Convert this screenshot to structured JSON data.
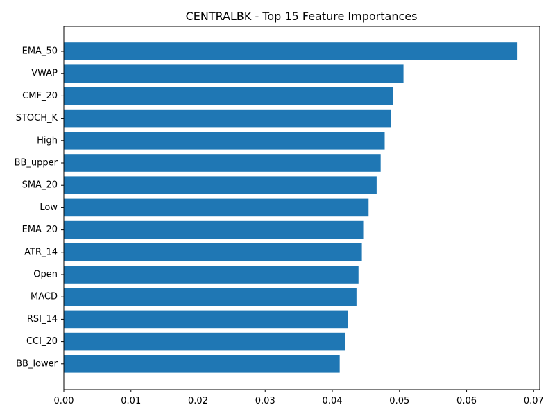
{
  "chart_data": {
    "type": "bar",
    "orientation": "horizontal",
    "title": "CENTRALBK - Top 15 Feature Importances",
    "xlabel": "",
    "ylabel": "",
    "categories": [
      "EMA_50",
      "VWAP",
      "CMF_20",
      "STOCH_K",
      "High",
      "BB_upper",
      "SMA_20",
      "Low",
      "EMA_20",
      "ATR_14",
      "Open",
      "MACD",
      "RSI_14",
      "CCI_20",
      "BB_lower"
    ],
    "values": [
      0.0675,
      0.0506,
      0.049,
      0.0487,
      0.0478,
      0.0472,
      0.0466,
      0.0454,
      0.0446,
      0.0444,
      0.0439,
      0.0436,
      0.0423,
      0.0419,
      0.0411
    ],
    "xlim": [
      0.0,
      0.0709
    ],
    "xticks": [
      0.0,
      0.01,
      0.02,
      0.03,
      0.04,
      0.05,
      0.06,
      0.07
    ],
    "xtick_labels": [
      "0.00",
      "0.01",
      "0.02",
      "0.03",
      "0.04",
      "0.05",
      "0.06",
      "0.07"
    ],
    "bar_color": "#1f77b4",
    "grid": false,
    "legend": "none"
  }
}
